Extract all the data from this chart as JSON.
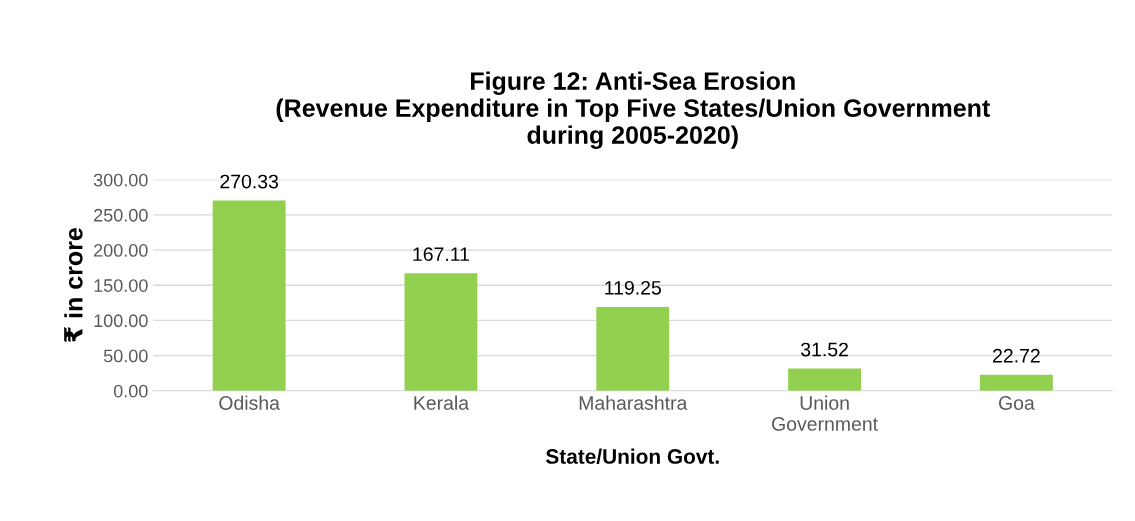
{
  "chart_data": {
    "type": "bar",
    "title": "Figure 12: Anti-Sea Erosion\n(Revenue Expenditure in Top Five States/Union Government\nduring 2005-2020)",
    "xlabel": "State/Union Govt.",
    "ylabel": "₹ in crore",
    "categories": [
      "Odisha",
      "Kerala",
      "Maharashtra",
      "Union\nGovernment",
      "Goa"
    ],
    "values": [
      270.33,
      167.11,
      119.25,
      31.52,
      22.72
    ],
    "color": "#92d050",
    "ylim": [
      0,
      300
    ],
    "yticks": [
      {
        "value": 0,
        "label": "0.00"
      },
      {
        "value": 50,
        "label": "50.00"
      },
      {
        "value": 100,
        "label": "100.00"
      },
      {
        "value": 150,
        "label": "150.00"
      },
      {
        "value": 200,
        "label": "200.00"
      },
      {
        "value": 250,
        "label": "250.00"
      },
      {
        "value": 300,
        "label": "300.00"
      }
    ],
    "grid": "y",
    "data_labels": true
  }
}
